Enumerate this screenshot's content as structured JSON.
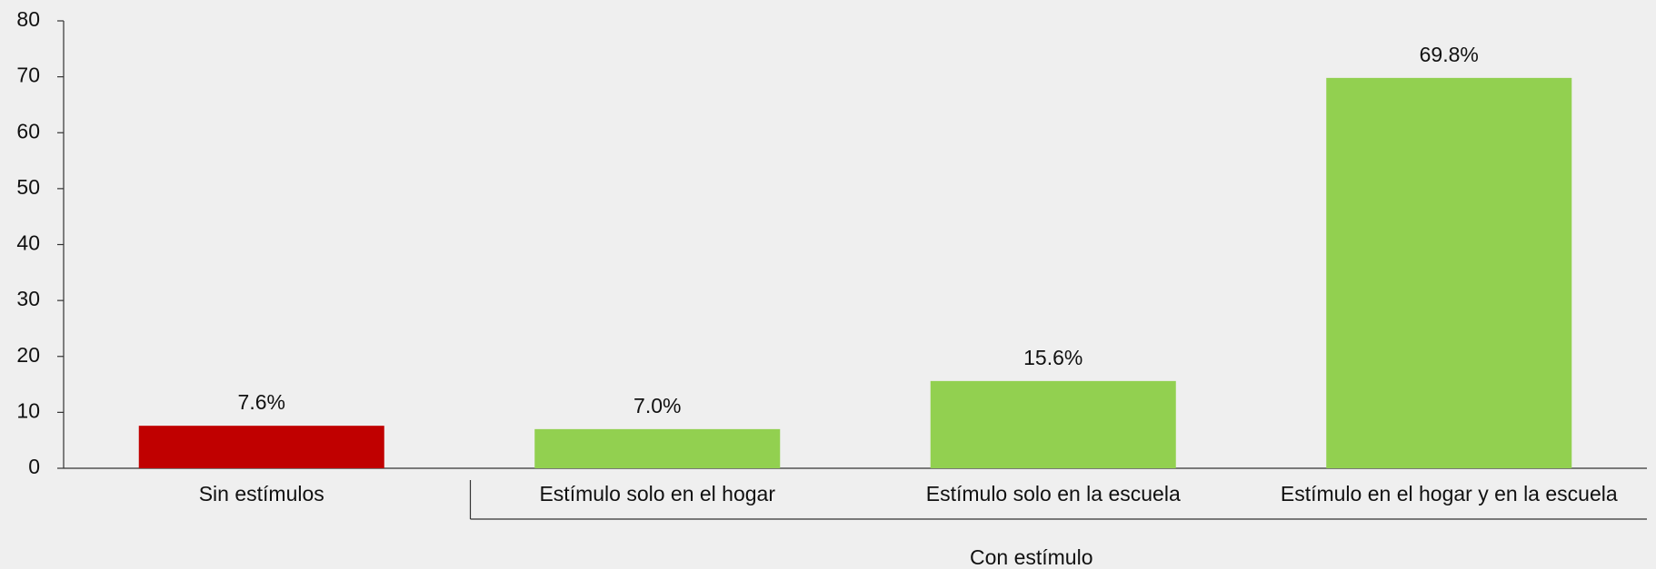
{
  "chart_data": {
    "type": "bar",
    "categories": [
      "Sin estímulos",
      "Estímulo solo en el hogar",
      "Estímulo solo en la escuela",
      "Estímulo en el hogar y en la escuela"
    ],
    "values": [
      7.6,
      7.0,
      15.6,
      69.8
    ],
    "value_labels": [
      "7.6%",
      "7.0%",
      "15.6%",
      "69.8%"
    ],
    "colors": [
      "#c00000",
      "#92d050",
      "#92d050",
      "#92d050"
    ],
    "group_label": "Con estímulo",
    "ylim": [
      0,
      80
    ],
    "yticks": [
      0,
      10,
      20,
      30,
      40,
      50,
      60,
      70,
      80
    ],
    "grid": false
  }
}
